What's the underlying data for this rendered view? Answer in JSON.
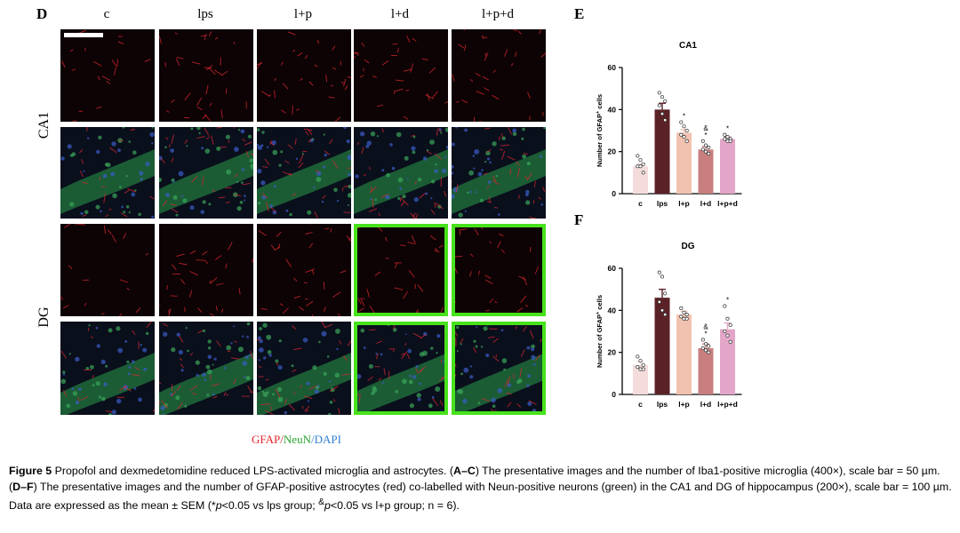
{
  "figure": {
    "panel_labels": {
      "d": "D",
      "e": "E",
      "f": "F"
    },
    "columns": [
      "c",
      "lps",
      "l+p",
      "l+d",
      "l+p+d"
    ],
    "rows": [
      "CA1",
      "DG"
    ],
    "highlighted_columns": [
      "l+d",
      "l+p+d"
    ],
    "highlight_color": "#48e21c",
    "legend": {
      "gfap": "GFAP",
      "sep1": "/",
      "neun": "NeuN",
      "sep2": "/",
      "dapi": "DAPI"
    },
    "legend_colors": {
      "gfap": "#e0262a",
      "neun": "#2aa530",
      "dapi": "#2f7fd6"
    }
  },
  "chart_data": [
    {
      "type": "bar",
      "panel": "E",
      "title": "CA1",
      "ylabel": "Number of GFAP+ cells",
      "ylim": [
        0,
        60
      ],
      "yticks": [
        0,
        20,
        40,
        60
      ],
      "categories": [
        "c",
        "lps",
        "l+p",
        "l+d",
        "l+p+d"
      ],
      "values": [
        13,
        40,
        29,
        21,
        26
      ],
      "sem": [
        1.5,
        3,
        1.5,
        1.5,
        1
      ],
      "significance": [
        "",
        "",
        "*",
        "&\n*",
        "*"
      ],
      "points": [
        [
          18,
          16,
          14,
          13,
          13,
          10
        ],
        [
          48,
          46,
          44,
          42,
          38,
          35
        ],
        [
          34,
          32,
          30,
          28,
          27,
          25
        ],
        [
          25,
          23,
          22,
          21,
          20,
          19
        ],
        [
          28,
          27,
          26,
          26,
          25,
          25
        ]
      ],
      "colors": [
        "#f5dcdc",
        "#5a2226",
        "#f2c2b0",
        "#c97f7f",
        "#e3a6c8"
      ]
    },
    {
      "type": "bar",
      "panel": "F",
      "title": "DG",
      "ylabel": "Number of GFAP+ cells",
      "ylim": [
        0,
        60
      ],
      "yticks": [
        0,
        20,
        40,
        60
      ],
      "categories": [
        "c",
        "lps",
        "l+p",
        "l+d",
        "l+p+d"
      ],
      "values": [
        14,
        46,
        38,
        22,
        31
      ],
      "sem": [
        1.5,
        4,
        1.5,
        2,
        3
      ],
      "significance": [
        "",
        "",
        "",
        "&\n*",
        "*"
      ],
      "points": [
        [
          18,
          16,
          14,
          13,
          12,
          12
        ],
        [
          58,
          56,
          48,
          44,
          40,
          38
        ],
        [
          41,
          39,
          38,
          37,
          36,
          36
        ],
        [
          26,
          24,
          23,
          22,
          21,
          20
        ],
        [
          42,
          36,
          33,
          30,
          28,
          25
        ]
      ],
      "colors": [
        "#f5dcdc",
        "#5a2226",
        "#f2c2b0",
        "#c97f7f",
        "#e3a6c8"
      ]
    }
  ],
  "caption": {
    "label": "Figure 5",
    "part1": " Propofol and dexmedetomidine reduced LPS-activated microglia and astrocytes. (",
    "b1": "A–C",
    "part2": ") The presentative images and the number of Iba1-positive microglia (400×), scale bar = 50 µm. (",
    "b2": "D–F",
    "part3": ") The presentative images and the number of GFAP-positive astrocytes (red) co-labelled with Neun-positive neurons (green) in the CA1 and DG of hippocampus (200×), scale bar = 100 µm. Data are expressed as the mean ± SEM (*",
    "p1": "p",
    "part4": "<0.05 vs lps group; ",
    "sup": "&",
    "p2": "p",
    "part5": "<0.05 vs l+p group; n = 6)."
  }
}
